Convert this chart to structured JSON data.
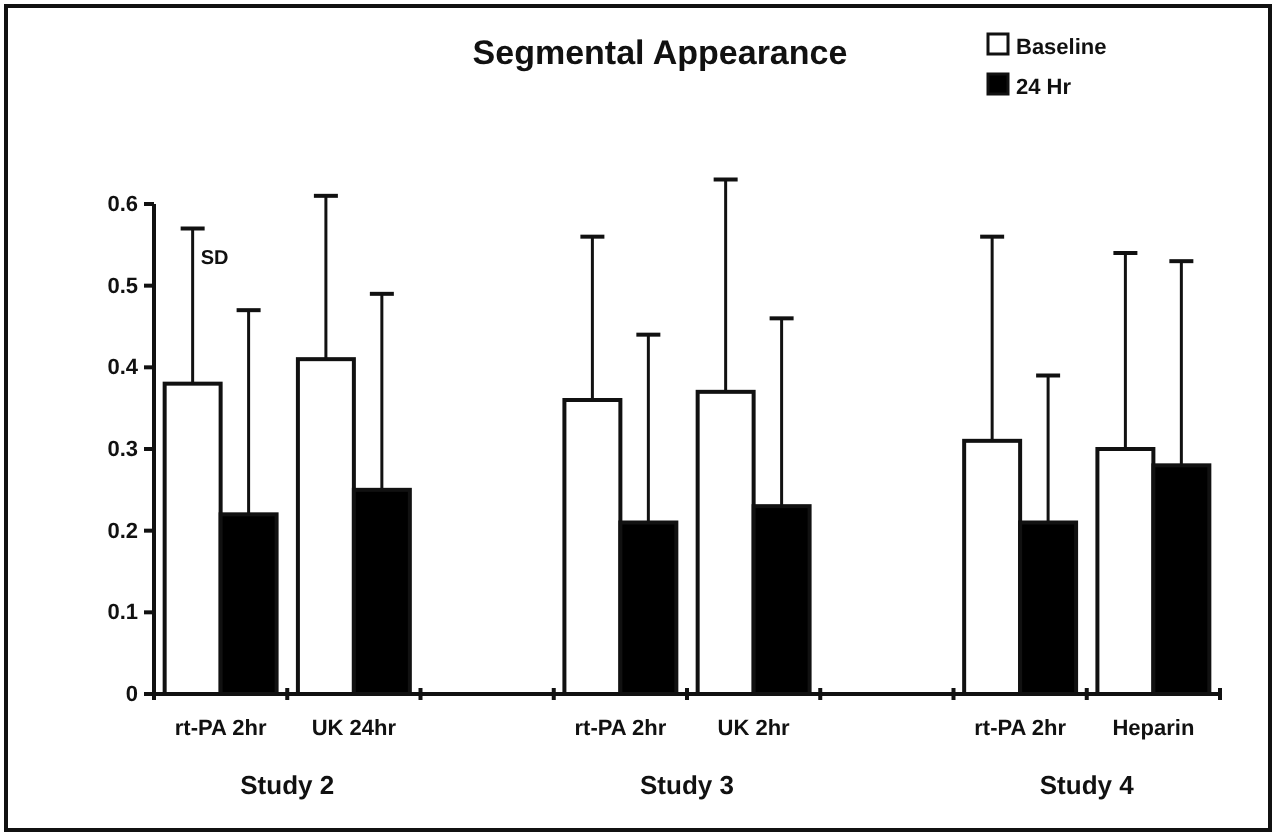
{
  "chart_data": {
    "type": "bar",
    "title": "Segmental Appearance",
    "categories": [
      "rt-PA 2hr",
      "UK 24hr",
      null,
      "rt-PA 2hr",
      "UK 2hr",
      null,
      "rt-PA 2hr",
      "Heparin"
    ],
    "series": [
      {
        "name": "Baseline",
        "color": "#ffffff",
        "values": [
          0.38,
          0.41,
          null,
          0.36,
          0.37,
          null,
          0.31,
          0.3
        ],
        "errors": [
          [
            0.38,
            0.57
          ],
          [
            0.41,
            0.61
          ],
          null,
          [
            0.36,
            0.56
          ],
          [
            0.37,
            0.63
          ],
          null,
          [
            0.31,
            0.56
          ],
          [
            0.3,
            0.54
          ]
        ]
      },
      {
        "name": "24 Hr",
        "color": "#000000",
        "values": [
          0.22,
          0.25,
          null,
          0.21,
          0.23,
          null,
          0.21,
          0.28
        ],
        "errors": [
          [
            0.22,
            0.47
          ],
          [
            0.25,
            0.49
          ],
          null,
          [
            0.21,
            0.44
          ],
          [
            0.23,
            0.46
          ],
          null,
          [
            0.21,
            0.39
          ],
          [
            0.28,
            0.53
          ]
        ]
      }
    ],
    "ylim": [
      0,
      0.6
    ],
    "yticks": [
      {
        "value": 0,
        "label": "0"
      },
      0.1,
      0.2,
      0.3,
      0.4,
      0.5,
      0.6
    ],
    "legend": "top right",
    "grid": false,
    "annotations": [
      "SD",
      "Study 2",
      "Study 3",
      "Study 4"
    ]
  }
}
